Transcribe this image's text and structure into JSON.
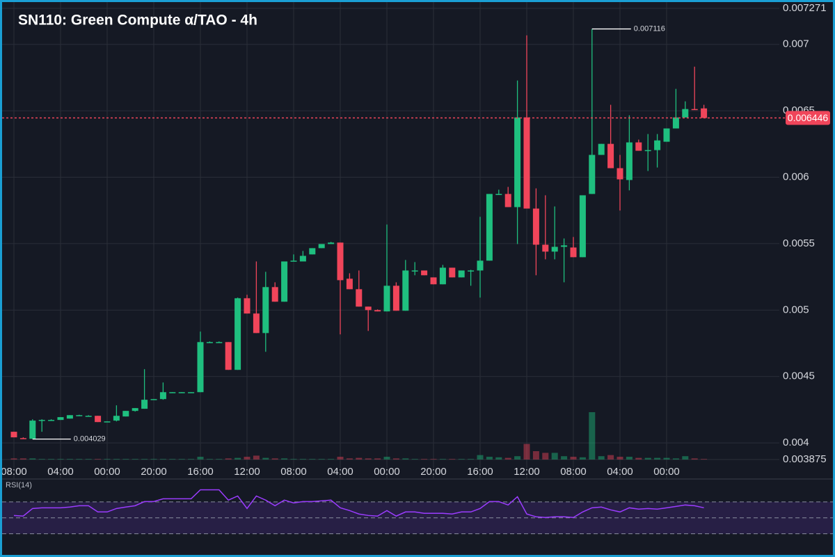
{
  "chart_data": {
    "type": "candlestick",
    "title": "SN110: Green Compute α/TAO - 4h",
    "categories": [
      "08:00",
      null,
      null,
      null,
      null,
      "04:00",
      null,
      null,
      null,
      null,
      "00:00",
      null,
      null,
      null,
      null,
      "20:00",
      null,
      null,
      null,
      null,
      "16:00",
      null,
      null,
      null,
      null,
      "12:00",
      null,
      null,
      null,
      null,
      "08:00",
      null,
      null,
      null,
      null,
      "04:00",
      null,
      null,
      null,
      null,
      "00:00",
      null,
      null,
      null,
      null,
      "20:00",
      null,
      null,
      null,
      null,
      "16:00",
      null,
      null,
      null,
      null,
      "12:00",
      null,
      null,
      null,
      null,
      "08:00",
      null,
      null,
      null,
      null,
      "04:00",
      null,
      null,
      null,
      null,
      "00:00",
      null,
      null,
      null,
      null
    ],
    "open": [
      0.004084,
      0.004036,
      0.004031,
      0.004168,
      0.004173,
      0.004173,
      0.004183,
      0.004209,
      0.004204,
      0.004204,
      0.004157,
      0.004168,
      0.004199,
      0.004241,
      0.004257,
      0.004325,
      0.00433,
      0.004382,
      0.004382,
      0.004382,
      0.004382,
      0.004759,
      0.004759,
      0.004759,
      0.00455,
      0.005089,
      0.004974,
      0.004827,
      0.005173,
      0.005063,
      0.005372,
      0.005366,
      0.005419,
      0.005466,
      0.005497,
      0.005508,
      0.005236,
      0.005157,
      0.005026,
      0.005,
      0.00499,
      0.005183,
      0.004995,
      0.005298,
      0.005298,
      0.005246,
      0.005194,
      0.005319,
      0.005246,
      0.005298,
      0.005298,
      0.005372,
      0.005874,
      0.005874,
      0.005775,
      0.00645,
      0.005764,
      0.005492,
      0.00544,
      0.005476,
      0.005471,
      0.005398,
      0.005874,
      0.006168,
      0.006251,
      0.006068,
      0.005979,
      0.006262,
      0.006204,
      0.006204,
      0.006267,
      0.006367,
      0.00645,
      0.006513,
      0.006518
    ],
    "high": [
      0.004084,
      0.004042,
      0.004178,
      0.004178,
      0.004178,
      0.004194,
      0.004209,
      0.004212,
      0.004209,
      0.004204,
      0.004162,
      0.004283,
      0.004241,
      0.004262,
      0.004555,
      0.00433,
      0.004455,
      0.004382,
      0.004382,
      0.004382,
      0.004838,
      0.004764,
      0.004764,
      0.004759,
      0.005094,
      0.005115,
      0.005366,
      0.005288,
      0.005209,
      0.005366,
      0.005419,
      0.005445,
      0.005466,
      0.005497,
      0.005513,
      0.005508,
      0.005277,
      0.005298,
      0.005026,
      0.005005,
      0.005644,
      0.005209,
      0.005377,
      0.005361,
      0.005298,
      0.005246,
      0.00534,
      0.005319,
      0.005298,
      0.005303,
      0.005702,
      0.005874,
      0.005906,
      0.005927,
      0.006728,
      0.007068,
      0.005916,
      0.005864,
      0.00578,
      0.005539,
      0.00555,
      0.005864,
      0.007116,
      0.006251,
      0.006545,
      0.006168,
      0.006466,
      0.006283,
      0.006325,
      0.006325,
      0.006367,
      0.006665,
      0.006571,
      0.006832,
      0.006545
    ],
    "low": [
      0.004042,
      0.004031,
      0.004029,
      0.004084,
      0.004168,
      0.004173,
      0.004183,
      0.004204,
      0.004204,
      0.004157,
      0.004157,
      0.004162,
      0.004199,
      0.004236,
      0.004257,
      0.004325,
      0.004325,
      0.004377,
      0.004377,
      0.004377,
      0.004382,
      0.004754,
      0.004754,
      0.00455,
      0.00455,
      0.004974,
      0.004827,
      0.004686,
      0.005063,
      0.005063,
      0.005366,
      0.005366,
      0.005419,
      0.005466,
      0.005497,
      0.004817,
      0.005157,
      0.005026,
      0.004843,
      0.00499,
      0.00499,
      0.004995,
      0.004995,
      0.005262,
      0.005262,
      0.005194,
      0.005194,
      0.005246,
      0.005246,
      0.005183,
      0.005094,
      0.005372,
      0.005869,
      0.005775,
      0.005497,
      0.005764,
      0.005262,
      0.005382,
      0.005382,
      0.005209,
      0.005398,
      0.005398,
      0.005874,
      0.006168,
      0.006068,
      0.005749,
      0.005901,
      0.006199,
      0.006047,
      0.006073,
      0.006267,
      0.006367,
      0.00645,
      0.006508,
      0.006446
    ],
    "close": [
      0.004042,
      0.004031,
      0.004168,
      0.004173,
      0.004173,
      0.004194,
      0.004209,
      0.004209,
      0.004204,
      0.004157,
      0.004162,
      0.004204,
      0.004241,
      0.004262,
      0.004325,
      0.00433,
      0.004382,
      0.004382,
      0.004382,
      0.004382,
      0.004759,
      0.004759,
      0.004759,
      0.00455,
      0.005089,
      0.004974,
      0.004827,
      0.005173,
      0.005063,
      0.005366,
      0.005372,
      0.005408,
      0.005466,
      0.005497,
      0.005508,
      0.005225,
      0.005157,
      0.005026,
      0.005,
      0.00499,
      0.005183,
      0.004995,
      0.005298,
      0.005298,
      0.005262,
      0.005194,
      0.005319,
      0.005246,
      0.005298,
      0.005298,
      0.005372,
      0.005874,
      0.005874,
      0.005775,
      0.00645,
      0.005764,
      0.005492,
      0.00544,
      0.005476,
      0.005487,
      0.005398,
      0.005864,
      0.006168,
      0.006251,
      0.006068,
      0.005984,
      0.006262,
      0.006199,
      0.006204,
      0.006277,
      0.006367,
      0.00645,
      0.006513,
      0.006508,
      0.006446
    ],
    "volume": [
      2,
      2,
      2,
      1,
      1,
      1,
      1,
      1,
      1,
      1,
      1,
      1,
      1,
      1,
      1,
      1,
      1,
      1,
      1,
      1,
      5,
      1,
      1,
      2,
      3,
      5,
      7,
      3,
      2,
      2,
      1,
      1,
      1,
      1,
      1,
      5,
      2,
      3,
      2,
      2,
      5,
      2,
      2,
      1,
      1,
      1,
      1,
      1,
      1,
      1,
      8,
      5,
      4,
      3,
      6,
      28,
      15,
      12,
      12,
      6,
      5,
      4,
      85,
      6,
      8,
      5,
      5,
      3,
      3,
      3,
      3,
      2,
      6,
      2,
      1
    ],
    "volume_ylim": [
      0,
      100
    ],
    "rsi_label": "RSI(14)",
    "rsi": [
      53,
      52.2,
      61.7,
      62.6,
      62.6,
      62.6,
      63.5,
      65.2,
      65.2,
      57.4,
      57.4,
      61.7,
      63.5,
      65.2,
      70.4,
      70.4,
      73.9,
      73.9,
      73.9,
      73.9,
      85.2,
      85.2,
      85.2,
      72.2,
      77.4,
      61.7,
      77.4,
      72.2,
      65.2,
      72.2,
      68.7,
      70.4,
      70.4,
      71.3,
      72.2,
      62.6,
      59.1,
      54.8,
      53,
      52.2,
      59.1,
      52.2,
      57.4,
      57.4,
      55.7,
      55.7,
      55.7,
      54.8,
      57.4,
      57.4,
      61.7,
      70.4,
      70.4,
      66.1,
      76.5,
      54.8,
      51.3,
      50.4,
      51.3,
      51.3,
      50.4,
      57.4,
      62.6,
      63.5,
      60,
      57.4,
      62.6,
      60.9,
      61.7,
      60.9,
      62.6,
      64.3,
      66.1,
      65.2,
      62.6
    ],
    "rsi_ylim": [
      0,
      100
    ],
    "rsi_levels": [
      30,
      50,
      70
    ],
    "ylim": [
      0.003875,
      0.007271
    ],
    "yticks": [
      0.003875,
      0.004,
      0.0045,
      0.005,
      0.0055,
      0.006,
      0.0065,
      0.007,
      0.007271
    ],
    "last_price": 0.006446,
    "max_marker": 0.007116,
    "min_marker": 0.004029,
    "up_color": "#1fbf7f",
    "down_color": "#f0455a",
    "rsi_color": "#9b3cff",
    "grid": true
  }
}
